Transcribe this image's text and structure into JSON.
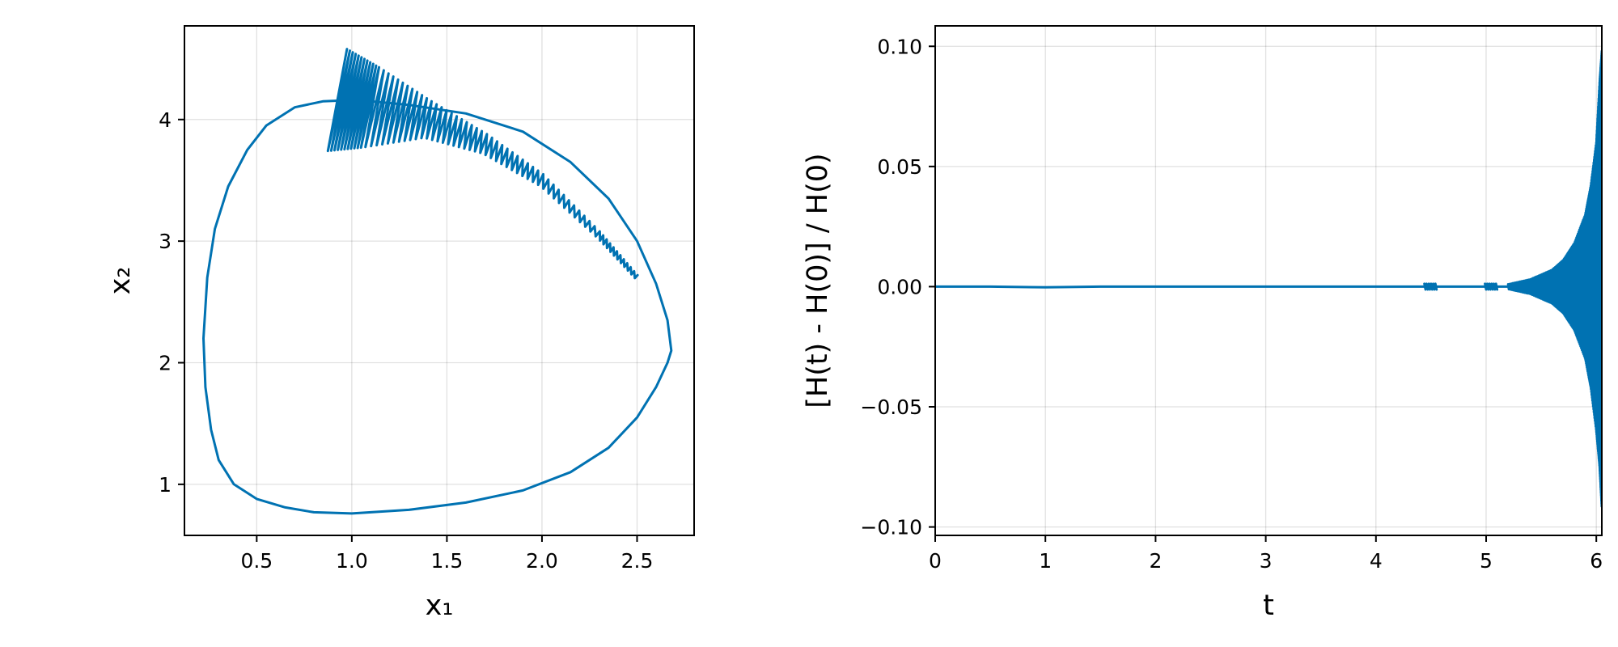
{
  "colors": {
    "series": "#0072b2",
    "frame": "#000000"
  },
  "chart_data": [
    {
      "type": "line",
      "xlabel": "x₁",
      "ylabel": "x₂",
      "xlim": [
        0.12,
        2.8
      ],
      "ylim": [
        0.58,
        4.77
      ],
      "xticks": [
        0.5,
        1.0,
        1.5,
        2.0,
        2.5
      ],
      "xtick_labels": [
        "0.5",
        "1.0",
        "1.5",
        "2.0",
        "2.5"
      ],
      "yticks": [
        1,
        2,
        3,
        4
      ],
      "ytick_labels": [
        "1",
        "2",
        "3",
        "4"
      ],
      "grid": true,
      "legend": "none",
      "series": [
        {
          "x": [
            1.0,
            0.85,
            0.7,
            0.55,
            0.45,
            0.35,
            0.28,
            0.24,
            0.22,
            0.23,
            0.26,
            0.3,
            0.38,
            0.5,
            0.65,
            0.8,
            1.0,
            1.3,
            1.6,
            1.9,
            2.15,
            2.35,
            2.5,
            2.6,
            2.66,
            2.68,
            2.66,
            2.6,
            2.5,
            2.35,
            2.15,
            1.9,
            1.6,
            1.3,
            1.1,
            1.0
          ],
          "y": [
            4.16,
            4.15,
            4.1,
            3.95,
            3.75,
            3.45,
            3.1,
            2.7,
            2.2,
            1.8,
            1.45,
            1.2,
            1.0,
            0.88,
            0.81,
            0.77,
            0.76,
            0.79,
            0.85,
            0.95,
            1.1,
            1.3,
            1.55,
            1.8,
            2.0,
            2.1,
            2.35,
            2.65,
            3.0,
            3.35,
            3.65,
            3.9,
            4.05,
            4.12,
            4.15,
            4.16
          ]
        }
      ],
      "oscillation_band": {
        "x": [
          0.92,
          1.1,
          1.4,
          1.7,
          2.0,
          2.3,
          2.5
        ],
        "y": [
          4.16,
          4.1,
          4.0,
          3.8,
          3.5,
          3.05,
          2.7
        ],
        "amplitude": [
          0.42,
          0.33,
          0.15,
          0.08,
          0.05,
          0.03,
          0.02
        ]
      }
    },
    {
      "type": "line",
      "xlabel": "t",
      "ylabel": "[H(t) - H(0)] / H(0)",
      "xlim": [
        0,
        6.05
      ],
      "ylim": [
        -0.1035,
        0.1085
      ],
      "xticks": [
        0,
        1,
        2,
        3,
        4,
        5,
        6
      ],
      "xtick_labels": [
        "0",
        "1",
        "2",
        "3",
        "4",
        "5",
        "6"
      ],
      "yticks": [
        -0.1,
        -0.05,
        0.0,
        0.05,
        0.1
      ],
      "ytick_labels": [
        "−0.10",
        "−0.05",
        "0.00",
        "0.05",
        "0.10"
      ],
      "grid": true,
      "legend": "none",
      "series": [
        {
          "x": [
            0,
            0.5,
            1,
            1.5,
            2,
            2.5,
            3,
            3.5,
            4,
            4.5,
            5,
            5.2
          ],
          "y": [
            0.0,
            0.0,
            -0.0003,
            0.0,
            0.0,
            0.0,
            0.0,
            0.0,
            0.0,
            0.0,
            0.0,
            0.0
          ]
        }
      ],
      "oscillation_envelope": {
        "t": [
          5.2,
          5.4,
          5.6,
          5.7,
          5.8,
          5.9,
          5.95,
          6.0,
          6.03,
          6.05
        ],
        "upper": [
          0.001,
          0.003,
          0.007,
          0.011,
          0.018,
          0.03,
          0.042,
          0.06,
          0.085,
          0.098
        ],
        "lower": [
          -0.001,
          -0.003,
          -0.007,
          -0.011,
          -0.018,
          -0.03,
          -0.042,
          -0.06,
          -0.075,
          -0.092
        ]
      }
    }
  ]
}
